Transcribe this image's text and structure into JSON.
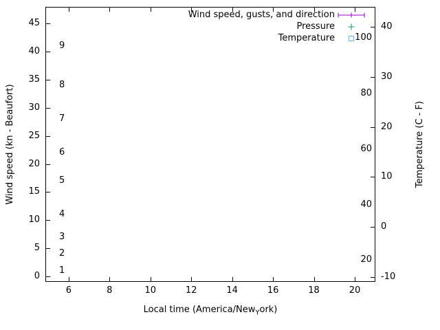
{
  "chart_data": {
    "type": "line",
    "title": "",
    "grid": false,
    "background_color": "#ffffff",
    "border_color": "#000000",
    "plot_has_no_visible_data_points": true,
    "series": [],
    "legend": {
      "position": "top-right-inside",
      "entries": [
        {
          "label": "Wind speed, gusts, and direction",
          "marker": "errorbar",
          "color": "#9400d3"
        },
        {
          "label": "Pressure",
          "marker": "plus",
          "color": "#009e73"
        },
        {
          "label": "Temperature",
          "marker": "open-square",
          "color": "#56b4e9"
        }
      ]
    },
    "xaxis": {
      "label": "Local time (America/New_York)",
      "label_parts": {
        "pre": "Local time (America/New",
        "sub": "Y",
        "post": "ork)"
      },
      "ticks": [
        6,
        8,
        10,
        12,
        14,
        16,
        18,
        20
      ],
      "range": [
        4.86,
        21.01
      ]
    },
    "yaxis_left": {
      "label": "Wind speed (kn - Beaufort)",
      "ticks": [
        0,
        5,
        10,
        15,
        20,
        25,
        30,
        35,
        40,
        45
      ],
      "range": [
        -1,
        48
      ],
      "beaufort_labels": [
        {
          "text": "1",
          "kn": 1
        },
        {
          "text": "2",
          "kn": 4
        },
        {
          "text": "3",
          "kn": 7
        },
        {
          "text": "4",
          "kn": 11
        },
        {
          "text": "5",
          "kn": 17
        },
        {
          "text": "6",
          "kn": 22
        },
        {
          "text": "7",
          "kn": 28
        },
        {
          "text": "8",
          "kn": 34
        },
        {
          "text": "9",
          "kn": 41
        }
      ]
    },
    "yaxis_right": {
      "label": "Temperature (C - F)",
      "ticks": [
        -10,
        0,
        10,
        20,
        30,
        40
      ],
      "range": [
        -11,
        44
      ],
      "fahrenheit_labels": [
        20,
        40,
        60,
        80,
        100
      ]
    }
  }
}
